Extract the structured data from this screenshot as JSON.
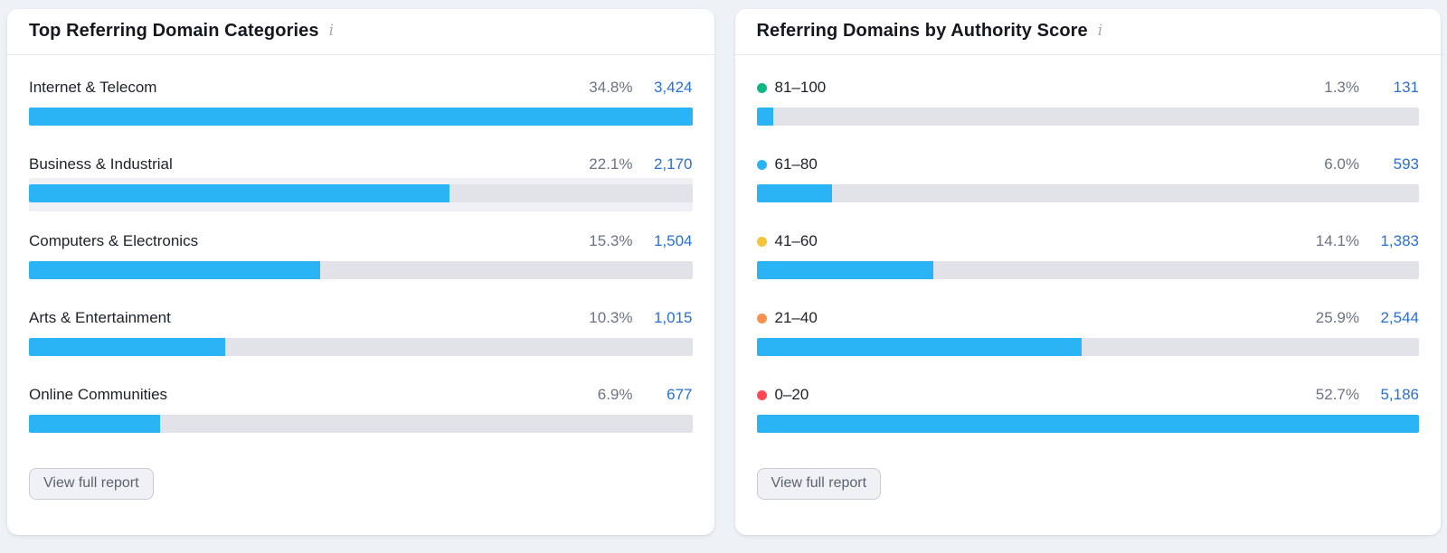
{
  "page": {
    "background_color": "#eef1f5",
    "bar_fill_color": "#2ab4f5",
    "bar_track_color": "#e1e3e8",
    "value_link_color": "#2a70d2"
  },
  "cards": [
    {
      "title": "Top Referring Domain Categories",
      "info_icon": "i",
      "button_label": "View full report",
      "rows": [
        {
          "label": "Internet & Telecom",
          "percent": "34.8%",
          "value": "3,424",
          "value_num": 3424
        },
        {
          "label": "Business & Industrial",
          "percent": "22.1%",
          "value": "2,170",
          "value_num": 2170,
          "hovered": true
        },
        {
          "label": "Computers & Electronics",
          "percent": "15.3%",
          "value": "1,504",
          "value_num": 1504
        },
        {
          "label": "Arts & Entertainment",
          "percent": "10.3%",
          "value": "1,015",
          "value_num": 1015
        },
        {
          "label": "Online Communities",
          "percent": "6.9%",
          "value": "677",
          "value_num": 677
        }
      ]
    },
    {
      "title": "Referring Domains by Authority Score",
      "info_icon": "i",
      "button_label": "View full report",
      "rows": [
        {
          "label": "81–100",
          "dot_color": "#0fb883",
          "percent": "1.3%",
          "value": "131",
          "value_num": 131
        },
        {
          "label": "61–80",
          "dot_color": "#2ab4f5",
          "percent": "6.0%",
          "value": "593",
          "value_num": 593
        },
        {
          "label": "41–60",
          "dot_color": "#f5c43d",
          "percent": "14.1%",
          "value": "1,383",
          "value_num": 1383
        },
        {
          "label": "21–40",
          "dot_color": "#f9914f",
          "percent": "25.9%",
          "value": "2,544",
          "value_num": 2544
        },
        {
          "label": "0–20",
          "dot_color": "#ff4a55",
          "percent": "52.7%",
          "value": "5,186",
          "value_num": 5186
        }
      ]
    }
  ],
  "chart_data": [
    {
      "type": "bar",
      "orientation": "horizontal",
      "title": "Top Referring Domain Categories",
      "categories": [
        "Internet & Telecom",
        "Business & Industrial",
        "Computers & Electronics",
        "Arts & Entertainment",
        "Online Communities"
      ],
      "values": [
        3424,
        2170,
        1504,
        1015,
        677
      ],
      "percents": [
        34.8,
        22.1,
        15.3,
        10.3,
        6.9
      ],
      "bar_scale": "relative_to_max",
      "xlabel": "",
      "ylabel": ""
    },
    {
      "type": "bar",
      "orientation": "horizontal",
      "title": "Referring Domains by Authority Score",
      "categories": [
        "81–100",
        "61–80",
        "41–60",
        "21–40",
        "0–20"
      ],
      "values": [
        131,
        593,
        1383,
        2544,
        5186
      ],
      "percents": [
        1.3,
        6.0,
        14.1,
        25.9,
        52.7
      ],
      "category_dot_colors": [
        "#0fb883",
        "#2ab4f5",
        "#f5c43d",
        "#f9914f",
        "#ff4a55"
      ],
      "bar_scale": "relative_to_max",
      "xlabel": "",
      "ylabel": ""
    }
  ]
}
